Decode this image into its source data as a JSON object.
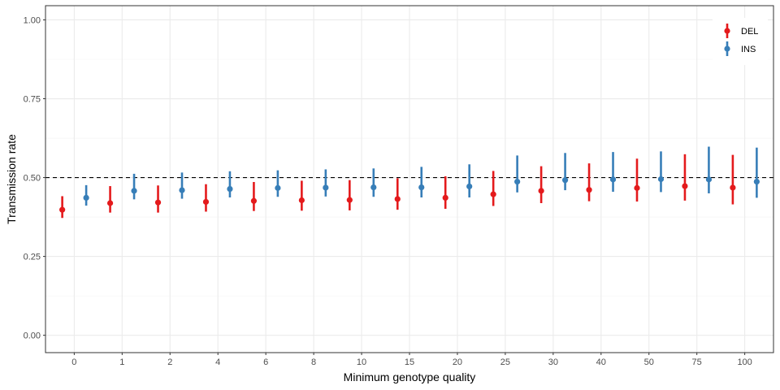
{
  "chart_data": {
    "type": "scatter",
    "xlabel": "Minimum genotype quality",
    "ylabel": "Transmission rate",
    "categories": [
      "0",
      "1",
      "2",
      "4",
      "6",
      "8",
      "10",
      "15",
      "20",
      "25",
      "30",
      "40",
      "50",
      "75",
      "100"
    ],
    "ylim": [
      0,
      1
    ],
    "yticks": [
      "0.00",
      "0.25",
      "0.50",
      "0.75",
      "1.00"
    ],
    "ytick_values": [
      0,
      0.25,
      0.5,
      0.75,
      1.0
    ],
    "reference_line": 0.5,
    "grid": true,
    "legend_position": "top-right",
    "series": [
      {
        "name": "DEL",
        "color": "#e41a1c",
        "values": [
          0.398,
          0.419,
          0.421,
          0.423,
          0.426,
          0.428,
          0.429,
          0.432,
          0.436,
          0.447,
          0.458,
          0.461,
          0.467,
          0.473,
          0.468
        ],
        "lower": [
          0.372,
          0.389,
          0.389,
          0.392,
          0.394,
          0.395,
          0.396,
          0.398,
          0.401,
          0.41,
          0.419,
          0.425,
          0.424,
          0.427,
          0.415
        ],
        "upper": [
          0.441,
          0.473,
          0.475,
          0.479,
          0.486,
          0.49,
          0.492,
          0.498,
          0.504,
          0.521,
          0.536,
          0.545,
          0.56,
          0.574,
          0.572
        ]
      },
      {
        "name": "INS",
        "color": "#377eb8",
        "values": [
          0.436,
          0.458,
          0.46,
          0.464,
          0.467,
          0.468,
          0.469,
          0.469,
          0.472,
          0.487,
          0.492,
          0.494,
          0.495,
          0.494,
          0.487
        ],
        "lower": [
          0.411,
          0.431,
          0.433,
          0.437,
          0.439,
          0.44,
          0.439,
          0.437,
          0.437,
          0.453,
          0.46,
          0.455,
          0.454,
          0.45,
          0.436
        ],
        "upper": [
          0.476,
          0.512,
          0.516,
          0.52,
          0.523,
          0.526,
          0.529,
          0.534,
          0.542,
          0.57,
          0.578,
          0.581,
          0.583,
          0.598,
          0.595
        ]
      }
    ]
  }
}
